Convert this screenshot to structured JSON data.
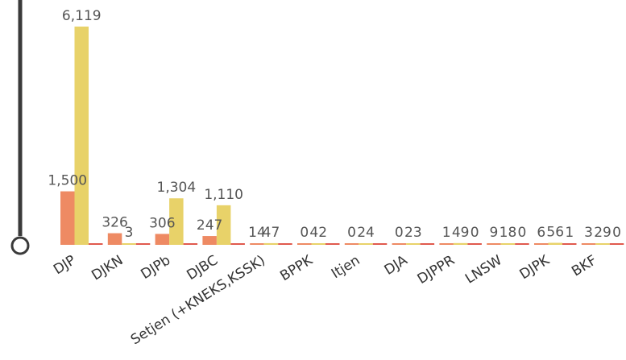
{
  "chart_data": {
    "type": "bar",
    "categories": [
      "DJP",
      "DJKN",
      "DJPb",
      "DJBC",
      "Setjen (+KNEKS,KSSK)",
      "BPPK",
      "Itjen",
      "DJA",
      "DJPPR",
      "LNSW",
      "DJPK",
      "BKF"
    ],
    "series": [
      {
        "values": [
          1500,
          326,
          306,
          247,
          14,
          0,
          0,
          0,
          1,
          9,
          6,
          3
        ],
        "color": "#EE8A63",
        "labels": [
          "1,500",
          "326",
          "306",
          "247",
          "14",
          "0",
          "0",
          "0",
          "1",
          "9",
          "6",
          "3"
        ]
      },
      {
        "values": [
          6119,
          3,
          1304,
          1110,
          47,
          42,
          24,
          23,
          49,
          18,
          56,
          29
        ],
        "color": "#E8D269",
        "labels": [
          "6,119",
          "3",
          "1,304",
          "1,110",
          "47",
          "42",
          "24",
          "23",
          "49",
          "18",
          "56",
          "29"
        ]
      },
      {
        "values": [
          0,
          0,
          0,
          0,
          0,
          0,
          0,
          0,
          0,
          0,
          1,
          0
        ],
        "color": "#E05A4E",
        "labels": [
          "",
          "",
          "",
          "",
          "",
          "",
          "",
          "",
          "0",
          "0",
          "1",
          "0"
        ]
      }
    ],
    "ylim": [
      0,
      6119
    ],
    "legend": "none",
    "grid": false
  }
}
